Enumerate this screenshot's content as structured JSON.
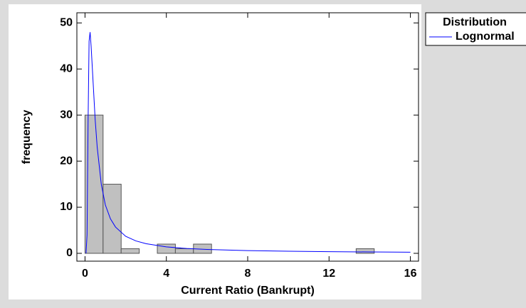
{
  "chart_data": {
    "type": "histogram",
    "xlabel": "Current Ratio (Bankrupt)",
    "ylabel": "frequency",
    "bins": [
      0,
      0.889,
      1.778,
      2.667,
      3.556,
      4.444,
      5.333,
      6.222,
      7.111,
      8,
      8.889,
      9.778,
      10.667,
      11.556,
      12.444,
      13.333,
      14.222,
      15.111,
      16
    ],
    "counts": [
      30,
      15,
      1,
      0,
      2,
      1,
      2,
      0,
      0,
      0,
      0,
      0,
      0,
      0,
      0,
      1,
      0,
      0
    ],
    "color": "#c0c0c0",
    "fit": {
      "name": "Lognormal",
      "color": "#0000ff",
      "x": [
        0.05,
        0.1,
        0.15,
        0.2,
        0.25,
        0.3,
        0.4,
        0.5,
        0.6,
        0.8,
        1,
        1.25,
        1.5,
        2,
        2.5,
        3,
        4,
        5,
        6,
        8,
        10,
        12,
        14,
        16
      ],
      "values": [
        0,
        4,
        28,
        46,
        48,
        45,
        37,
        29,
        23,
        15,
        10.5,
        7.5,
        5.7,
        3.7,
        2.7,
        2.1,
        1.4,
        1.05,
        0.85,
        0.6,
        0.45,
        0.36,
        0.3,
        0.25
      ]
    },
    "legend_title": "Distribution",
    "xlim": [
      -0.4,
      16.4
    ],
    "xticks": [
      0,
      4,
      8,
      12,
      16
    ],
    "ylim": [
      -1.7,
      52.2
    ],
    "yticks": [
      0,
      10,
      20,
      30,
      40,
      50
    ]
  }
}
